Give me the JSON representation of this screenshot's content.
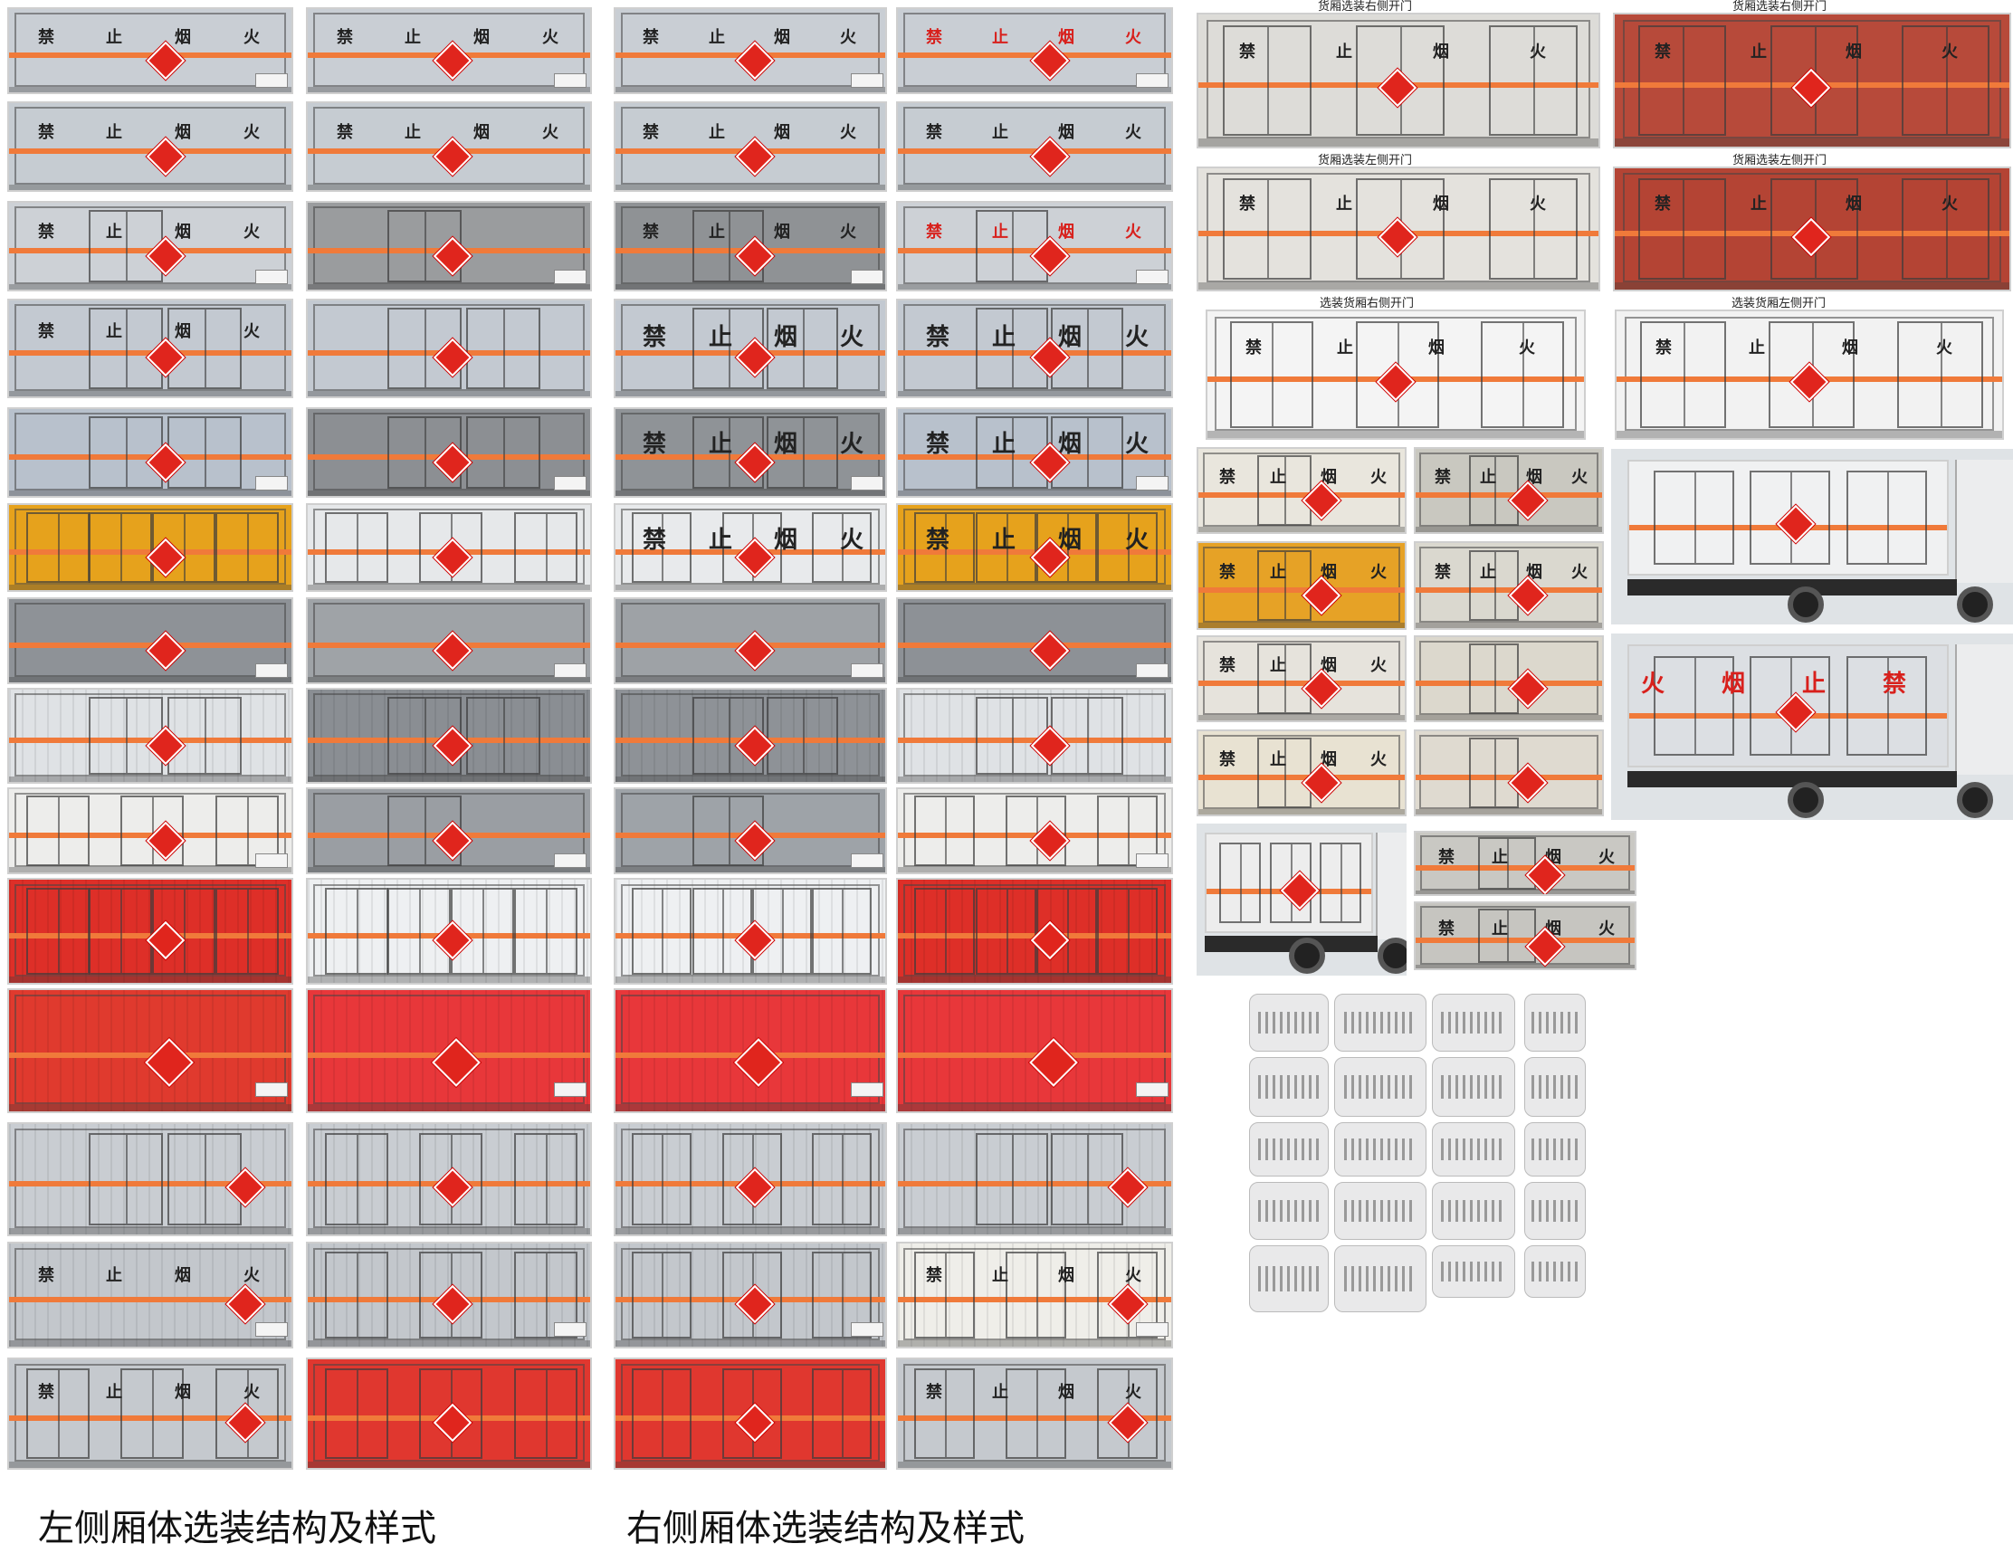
{
  "signs": {
    "ban": "禁",
    "stop": "止",
    "smoke": "烟",
    "fire": "火"
  },
  "captions": {
    "right_door_optional_a": "货厢选装右侧开门",
    "right_door_optional_b": "货厢选装右侧开门",
    "left_door_optional_a": "货厢选装左侧开门",
    "left_door_optional_b": "货厢选装左侧开门",
    "right_door_optional_c": "选装货厢右侧开门",
    "left_door_optional_c": "选装货厢左侧开门"
  },
  "bottom_captions": {
    "left": "左侧厢体选装结构及样式",
    "right": "右侧厢体选装结构及样式"
  },
  "colors": {
    "stripe": "#f07a3a",
    "hazard": "#e0251d",
    "red_body": "#e03a2e",
    "orange_body": "#e8a21c"
  },
  "icons": {
    "hazard": "flammable-diamond-icon",
    "refrigeration": "refrigeration-unit-icon"
  }
}
